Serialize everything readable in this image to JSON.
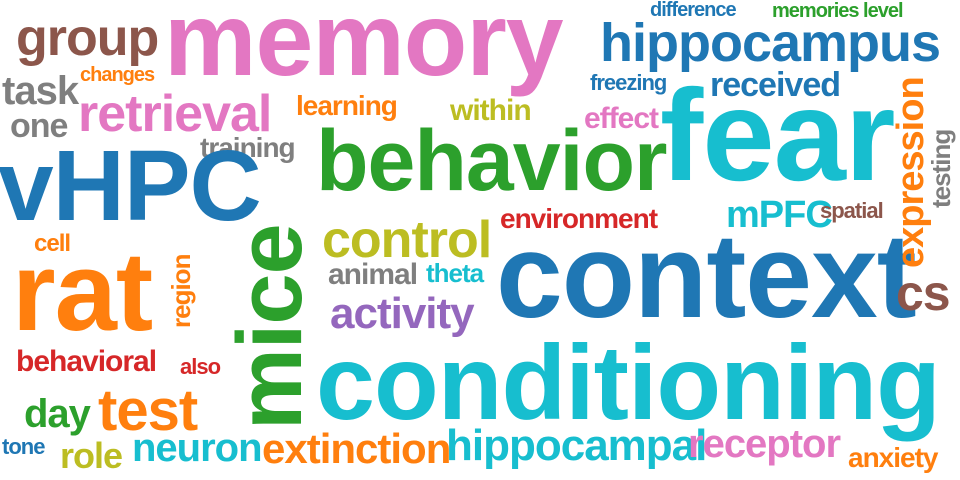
{
  "colors": {
    "blue": "#1f77b4",
    "orange": "#ff7f0e",
    "green": "#2ca02c",
    "red": "#d62728",
    "purple": "#9467bd",
    "brown": "#8c564b",
    "pink": "#e377c2",
    "gray": "#7f7f7f",
    "olive": "#bcbd22",
    "cyan": "#17becf"
  },
  "words": {
    "memory": "memory",
    "hippocampus": "hippocampus",
    "difference": "difference",
    "memories_level": "memories level",
    "group": "group",
    "changes": "changes",
    "task": "task",
    "one": "one",
    "retrieval": "retrieval",
    "learning": "learning",
    "within": "within",
    "freezing": "freezing",
    "received": "received",
    "effect": "effect",
    "fear": "fear",
    "training": "training",
    "behavior": "behavior",
    "vhpc": "vHPC",
    "expression": "expression",
    "testing": "testing",
    "mice": "mice",
    "environment": "environment",
    "mpfc": "mPFC",
    "spatial": "spatial",
    "control": "control",
    "cell": "cell",
    "region": "region",
    "context": "context",
    "rat": "rat",
    "animal": "animal",
    "theta": "theta",
    "cs": "cs",
    "activity": "activity",
    "behavioral": "behavioral",
    "also": "also",
    "conditioning": "conditioning",
    "day": "day",
    "test": "test",
    "tone": "tone",
    "role": "role",
    "neuron": "neuron",
    "extinction": "extinction",
    "hippocampal": "hippocampal",
    "receptor": "receptor",
    "anxiety": "anxiety"
  }
}
